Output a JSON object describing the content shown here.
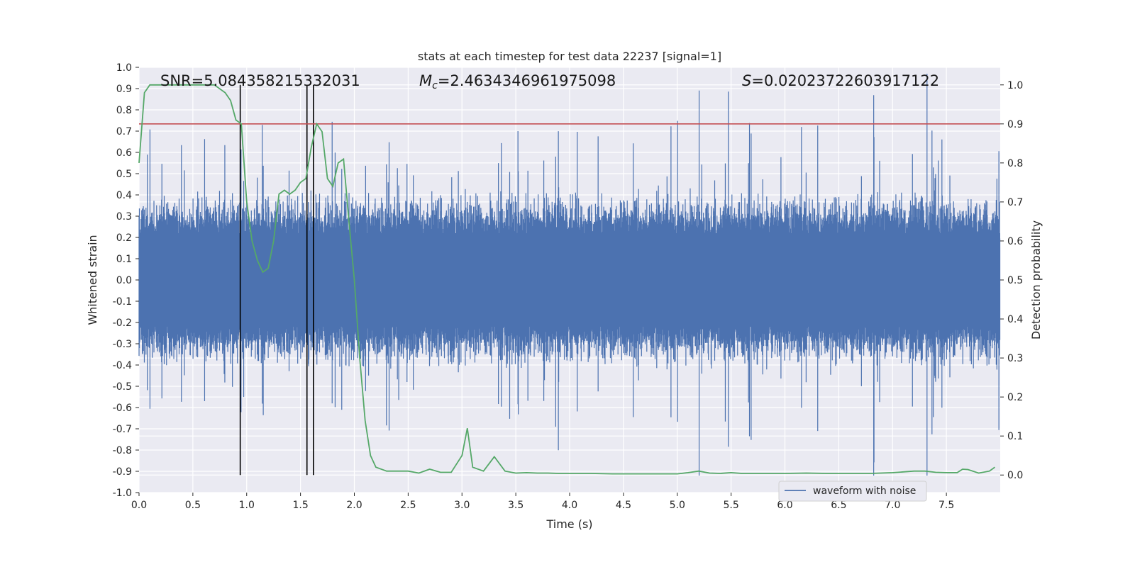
{
  "chart_data": {
    "type": "line",
    "title": "stats at each timestep for test data 22237 [signal=1]",
    "xlabel": "Time (s)",
    "ylabel": "Whitened strain",
    "y2label": "Detection probability",
    "xlim": [
      0.0,
      8.0
    ],
    "ylim": [
      -1.0,
      1.0
    ],
    "y2lim": [
      -0.045,
      1.045
    ],
    "x_ticks": [
      "0.0",
      "0.5",
      "1.0",
      "1.5",
      "2.0",
      "2.5",
      "3.0",
      "3.5",
      "4.0",
      "4.5",
      "5.0",
      "5.5",
      "6.0",
      "6.5",
      "7.0",
      "7.5"
    ],
    "y_ticks": [
      "1.0",
      "0.9",
      "0.8",
      "0.7",
      "0.6",
      "0.5",
      "0.4",
      "0.3",
      "0.2",
      "0.1",
      "0.0",
      "-0.1",
      "-0.2",
      "-0.3",
      "-0.4",
      "-0.5",
      "-0.6",
      "-0.7",
      "-0.8",
      "-0.9",
      "-1.0"
    ],
    "y2_ticks": [
      "1.0",
      "0.9",
      "0.8",
      "0.7",
      "0.6",
      "0.5",
      "0.4",
      "0.3",
      "0.2",
      "0.1",
      "0.0"
    ],
    "grid": true,
    "annotations": {
      "snr": "SNR=5.084358215332031",
      "mc_symbol": "M",
      "mc_sub": "c",
      "mc_value": "=2.4634346961975098",
      "s_symbol": "S",
      "s_value": "=0.02023722603917122"
    },
    "threshold_line": {
      "y2": 0.9,
      "color": "#c44e52"
    },
    "vertical_lines_x": [
      0.94,
      1.56,
      1.62
    ],
    "legend": {
      "placement": "bottom-right",
      "entries": [
        "waveform with noise"
      ]
    },
    "series": [
      {
        "name": "waveform with noise",
        "color": "#4c72b0",
        "axis": "left",
        "description": "dense noisy strain samples, typical envelope about ±0.35 with peaks near ±0.9"
      },
      {
        "axis": "right",
        "color": "#55a868",
        "x": [
          0.0,
          0.05,
          0.1,
          0.2,
          0.3,
          0.4,
          0.5,
          0.6,
          0.7,
          0.8,
          0.85,
          0.9,
          0.95,
          1.0,
          1.05,
          1.1,
          1.15,
          1.2,
          1.25,
          1.3,
          1.35,
          1.4,
          1.45,
          1.5,
          1.55,
          1.6,
          1.65,
          1.7,
          1.75,
          1.8,
          1.85,
          1.9,
          1.95,
          2.0,
          2.05,
          2.1,
          2.15,
          2.2,
          2.3,
          2.4,
          2.5,
          2.6,
          2.7,
          2.8,
          2.9,
          3.0,
          3.05,
          3.1,
          3.2,
          3.3,
          3.4,
          3.5,
          3.6,
          3.7,
          3.8,
          3.9,
          4.0,
          4.2,
          4.4,
          4.6,
          4.8,
          5.0,
          5.1,
          5.2,
          5.3,
          5.4,
          5.5,
          5.6,
          5.8,
          6.0,
          6.2,
          6.4,
          6.6,
          6.8,
          7.0,
          7.2,
          7.3,
          7.4,
          7.5,
          7.6,
          7.65,
          7.7,
          7.8,
          7.9,
          7.95
        ],
        "y": [
          0.8,
          0.98,
          1.0,
          1.0,
          1.0,
          1.0,
          1.0,
          1.0,
          1.0,
          0.98,
          0.96,
          0.91,
          0.9,
          0.7,
          0.6,
          0.55,
          0.52,
          0.53,
          0.6,
          0.72,
          0.73,
          0.72,
          0.73,
          0.75,
          0.76,
          0.84,
          0.9,
          0.88,
          0.76,
          0.74,
          0.8,
          0.81,
          0.65,
          0.5,
          0.3,
          0.14,
          0.05,
          0.02,
          0.01,
          0.01,
          0.01,
          0.005,
          0.015,
          0.007,
          0.007,
          0.05,
          0.12,
          0.02,
          0.01,
          0.047,
          0.01,
          0.005,
          0.006,
          0.005,
          0.005,
          0.004,
          0.004,
          0.004,
          0.003,
          0.003,
          0.003,
          0.003,
          0.006,
          0.01,
          0.005,
          0.004,
          0.006,
          0.004,
          0.004,
          0.004,
          0.005,
          0.004,
          0.004,
          0.004,
          0.006,
          0.01,
          0.01,
          0.007,
          0.006,
          0.006,
          0.015,
          0.014,
          0.005,
          0.01,
          0.02
        ]
      }
    ]
  }
}
